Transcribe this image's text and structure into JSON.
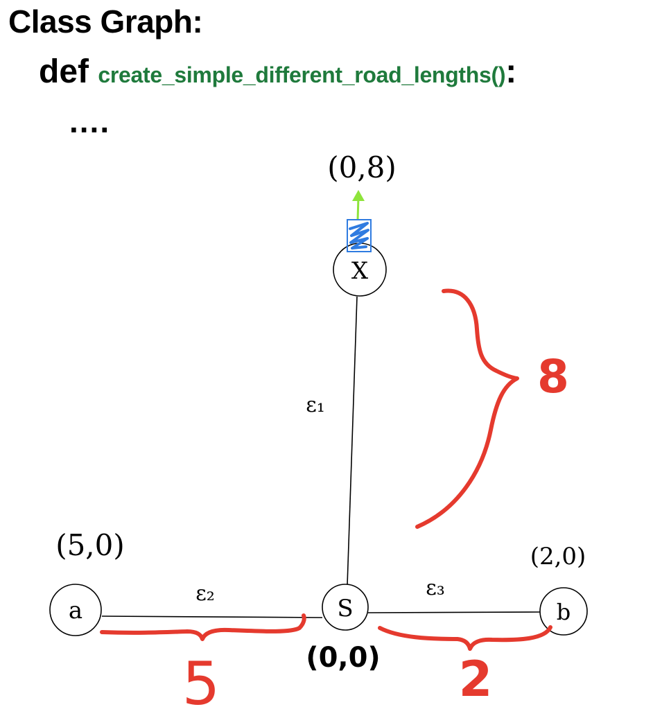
{
  "header": {
    "title": "Class Graph:",
    "def_keyword": "def",
    "function_name": "create_simple_different_road_lengths()",
    "colon": ":",
    "ellipsis": "...."
  },
  "nodes": [
    {
      "id": "x",
      "label": "X",
      "coord_label": "(0,8)"
    },
    {
      "id": "a",
      "label": "a",
      "coord_label": "(5,0)"
    },
    {
      "id": "s",
      "label": "S",
      "coord_label": "(0,0)"
    },
    {
      "id": "b",
      "label": "b",
      "coord_label": "(2,0)"
    }
  ],
  "edges": [
    {
      "id": "e1",
      "label": "ε₁",
      "from": "s",
      "to": "x",
      "length": "8"
    },
    {
      "id": "e2",
      "label": "ε₂",
      "from": "a",
      "to": "s",
      "length": "5"
    },
    {
      "id": "e3",
      "label": "ε₃",
      "from": "s",
      "to": "b",
      "length": "2"
    }
  ],
  "colors": {
    "annotation": "#e53a2e",
    "function_name": "#1f7a3c",
    "arrow": "#8ee43b",
    "marker": "#2f7be0"
  }
}
